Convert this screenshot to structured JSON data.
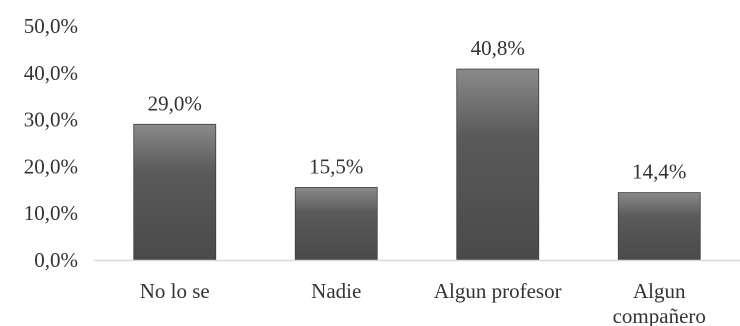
{
  "chart_data": {
    "type": "bar",
    "title": "",
    "xlabel": "",
    "ylabel": "",
    "categories": [
      [
        "No lo se"
      ],
      [
        "Nadie"
      ],
      [
        "Algun profesor"
      ],
      [
        "Algun",
        "compañero"
      ]
    ],
    "values": [
      29.0,
      15.5,
      40.8,
      14.4
    ],
    "value_labels": [
      "29,0%",
      "15,5%",
      "40,8%",
      "14,4%"
    ],
    "yticks": [
      0,
      10,
      20,
      30,
      40,
      50
    ],
    "ytick_labels": [
      "0,0%",
      "10,0%",
      "20,0%",
      "30,0%",
      "40,0%",
      "50,0%"
    ],
    "ylim": [
      0,
      50
    ],
    "grid": false,
    "legend": "none",
    "colors": {
      "bar_top": "#8a8a8a",
      "bar_mid": "#5a5a5a",
      "bar_bottom": "#4a4a4a",
      "axis": "#d9d9d9",
      "text": "#333333"
    }
  }
}
